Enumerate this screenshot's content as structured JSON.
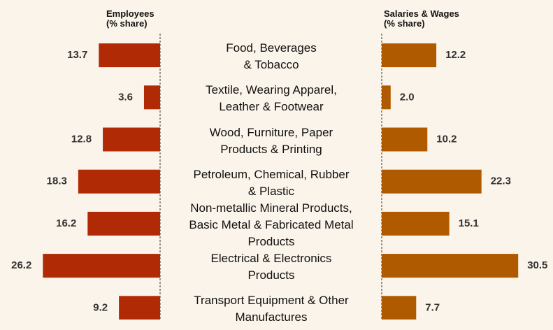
{
  "chart_data": {
    "type": "butterfly-bar",
    "categories": [
      "Food, Beverages\n& Tobacco",
      "Textile, Wearing Apparel,\nLeather & Footwear",
      "Wood, Furniture, Paper\nProducts & Printing",
      "Petroleum, Chemical, Rubber\n& Plastic",
      "Non-metallic Mineral Products,\nBasic Metal & Fabricated Metal\nProducts",
      "Electrical & Electronics\nProducts",
      "Transport Equipment & Other\nManufactures"
    ],
    "series": [
      {
        "name": "Employees\n(% share)",
        "color": "#b02a06",
        "values": [
          13.7,
          3.6,
          12.8,
          18.3,
          16.2,
          26.2,
          9.2
        ]
      },
      {
        "name": "Salaries & Wages\n(% share)",
        "color": "#b05a00",
        "values": [
          12.2,
          2.0,
          10.2,
          22.3,
          15.1,
          30.5,
          7.7
        ],
        "value_labels": [
          "12.2",
          "2.0",
          "10.2",
          "22.3",
          "15.1",
          "30.5",
          "7.7"
        ]
      }
    ]
  }
}
